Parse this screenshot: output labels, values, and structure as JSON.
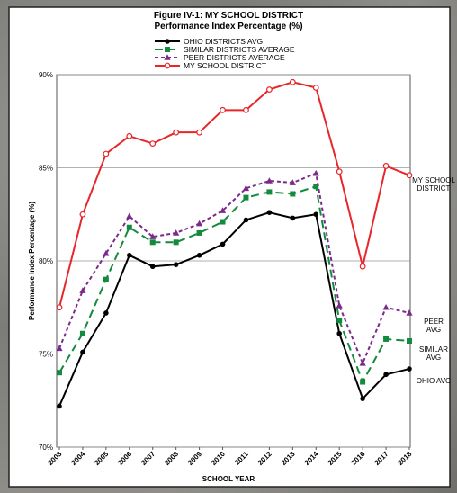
{
  "chart_data": {
    "type": "line",
    "title": "Figure IV-1: MY SCHOOL DISTRICT",
    "subtitle": "Performance Index Percentage (%)",
    "x_label": "SCHOOL YEAR",
    "y_label": "Performance Index Percentage (%)",
    "categories": [
      "2003",
      "2004",
      "2005",
      "2006",
      "2007",
      "2008",
      "2009",
      "2010",
      "2011",
      "2012",
      "2013",
      "2014",
      "2015",
      "2016",
      "2017",
      "2018"
    ],
    "ylim": [
      70,
      90
    ],
    "yticks": [
      {
        "value": 70,
        "label": "70%"
      },
      {
        "value": 75,
        "label": "75%"
      },
      {
        "value": 80,
        "label": "80%"
      },
      {
        "value": 85,
        "label": "85%"
      },
      {
        "value": 90,
        "label": "90%"
      }
    ],
    "grid": true,
    "legend": "top",
    "series": [
      {
        "name": "OHIO DISTRICTS AVG",
        "color": "#000000",
        "dash": "solid",
        "marker": "circle",
        "end_label": [
          "OHIO AVG"
        ],
        "values": [
          72.2,
          75.1,
          77.2,
          80.3,
          79.7,
          79.8,
          80.3,
          80.9,
          82.2,
          82.6,
          82.3,
          82.5,
          76.1,
          72.6,
          73.9,
          74.2
        ]
      },
      {
        "name": "SIMILAR DISTRICTS AVERAGE",
        "color": "#138a3e",
        "dash": "long",
        "marker": "square",
        "end_label": [
          "SIMILAR",
          "AVG"
        ],
        "values": [
          74.0,
          76.1,
          79.0,
          81.8,
          81.0,
          81.0,
          81.5,
          82.1,
          83.4,
          83.7,
          83.6,
          84.0,
          76.8,
          73.5,
          75.8,
          75.7
        ]
      },
      {
        "name": "PEER DISTRICTS AVERAGE",
        "color": "#7b2a8c",
        "dash": "short",
        "marker": "triangle",
        "end_label": [
          "PEER",
          "AVG"
        ],
        "values": [
          75.3,
          78.4,
          80.4,
          82.4,
          81.3,
          81.5,
          82.0,
          82.7,
          83.9,
          84.3,
          84.2,
          84.7,
          77.6,
          74.5,
          77.5,
          77.2
        ]
      },
      {
        "name": "MY SCHOOL DISTRICT",
        "color": "#e8262a",
        "dash": "solid",
        "marker": "open-circle",
        "end_label": [
          "MY SCHOOL",
          "DISTRICT"
        ],
        "values": [
          77.5,
          82.5,
          85.75,
          86.7,
          86.3,
          86.9,
          86.9,
          88.1,
          88.1,
          89.2,
          89.6,
          89.3,
          84.8,
          79.7,
          85.1,
          84.6
        ]
      }
    ]
  }
}
